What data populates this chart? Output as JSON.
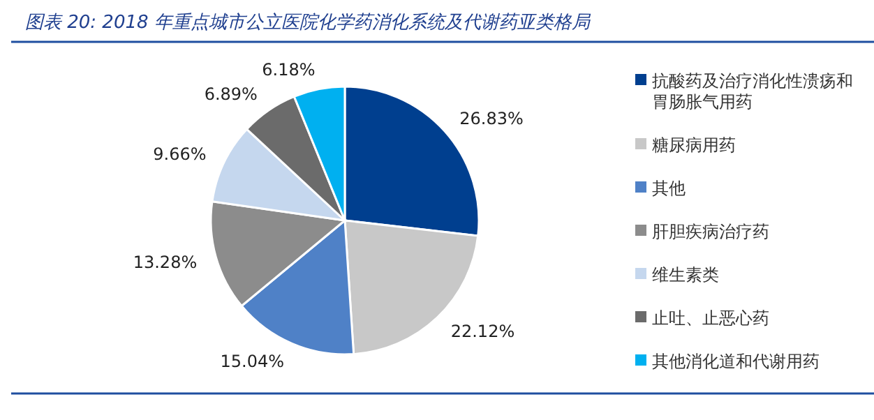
{
  "chart_data": {
    "type": "pie",
    "title": "图表 20:  2018 年重点城市公立医院化学药消化系统及代谢药亚类格局",
    "categories": [
      "抗酸药及治疗消化性溃疡和胃肠胀气用药",
      "糖尿病用药",
      "其他",
      "肝胆疾病治疗药",
      "维生素类",
      "止吐、止恶心药",
      "其他消化道和代谢用药"
    ],
    "values": [
      26.83,
      22.12,
      15.04,
      13.28,
      9.66,
      6.89,
      6.18
    ],
    "colors": [
      "#003f8f",
      "#c8c8c8",
      "#4f81c7",
      "#8c8c8c",
      "#c5d7ee",
      "#6b6b6b",
      "#00b0f0"
    ],
    "value_labels": [
      "26.83%",
      "22.12%",
      "15.04%",
      "13.28%",
      "9.66%",
      "6.89%",
      "6.18%"
    ],
    "legend": "right"
  }
}
